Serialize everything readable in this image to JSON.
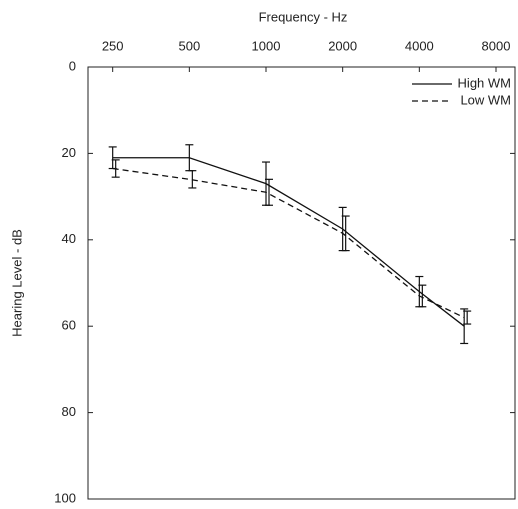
{
  "chart_data": {
    "type": "line",
    "x_label": "Frequency - Hz",
    "y_label": "Hearing Level - dB",
    "x": [
      250,
      500,
      1000,
      2000,
      4000,
      6000
    ],
    "series": [
      {
        "name": "High WM",
        "color": "#111111",
        "dash": "solid",
        "values": [
          21,
          21,
          27,
          37.5,
          52,
          60
        ],
        "errors": [
          2.5,
          3,
          5,
          5,
          3.5,
          4
        ]
      },
      {
        "name": "Low WM",
        "color": "#111111",
        "dash": "dashed",
        "values": [
          23.5,
          26,
          29,
          38.5,
          53,
          58
        ],
        "errors": [
          2,
          2,
          3,
          4,
          2.5,
          1.5
        ]
      }
    ],
    "x_scale": "log",
    "xlim": [
      200,
      9500
    ],
    "xticks": [
      250,
      500,
      1000,
      2000,
      4000,
      8000
    ],
    "x_axis_position": "top",
    "ylim": [
      0,
      100
    ],
    "y_inverted": true,
    "yticks": [
      0,
      20,
      40,
      60,
      80,
      100
    ],
    "grid": false,
    "legend": "upper right"
  }
}
